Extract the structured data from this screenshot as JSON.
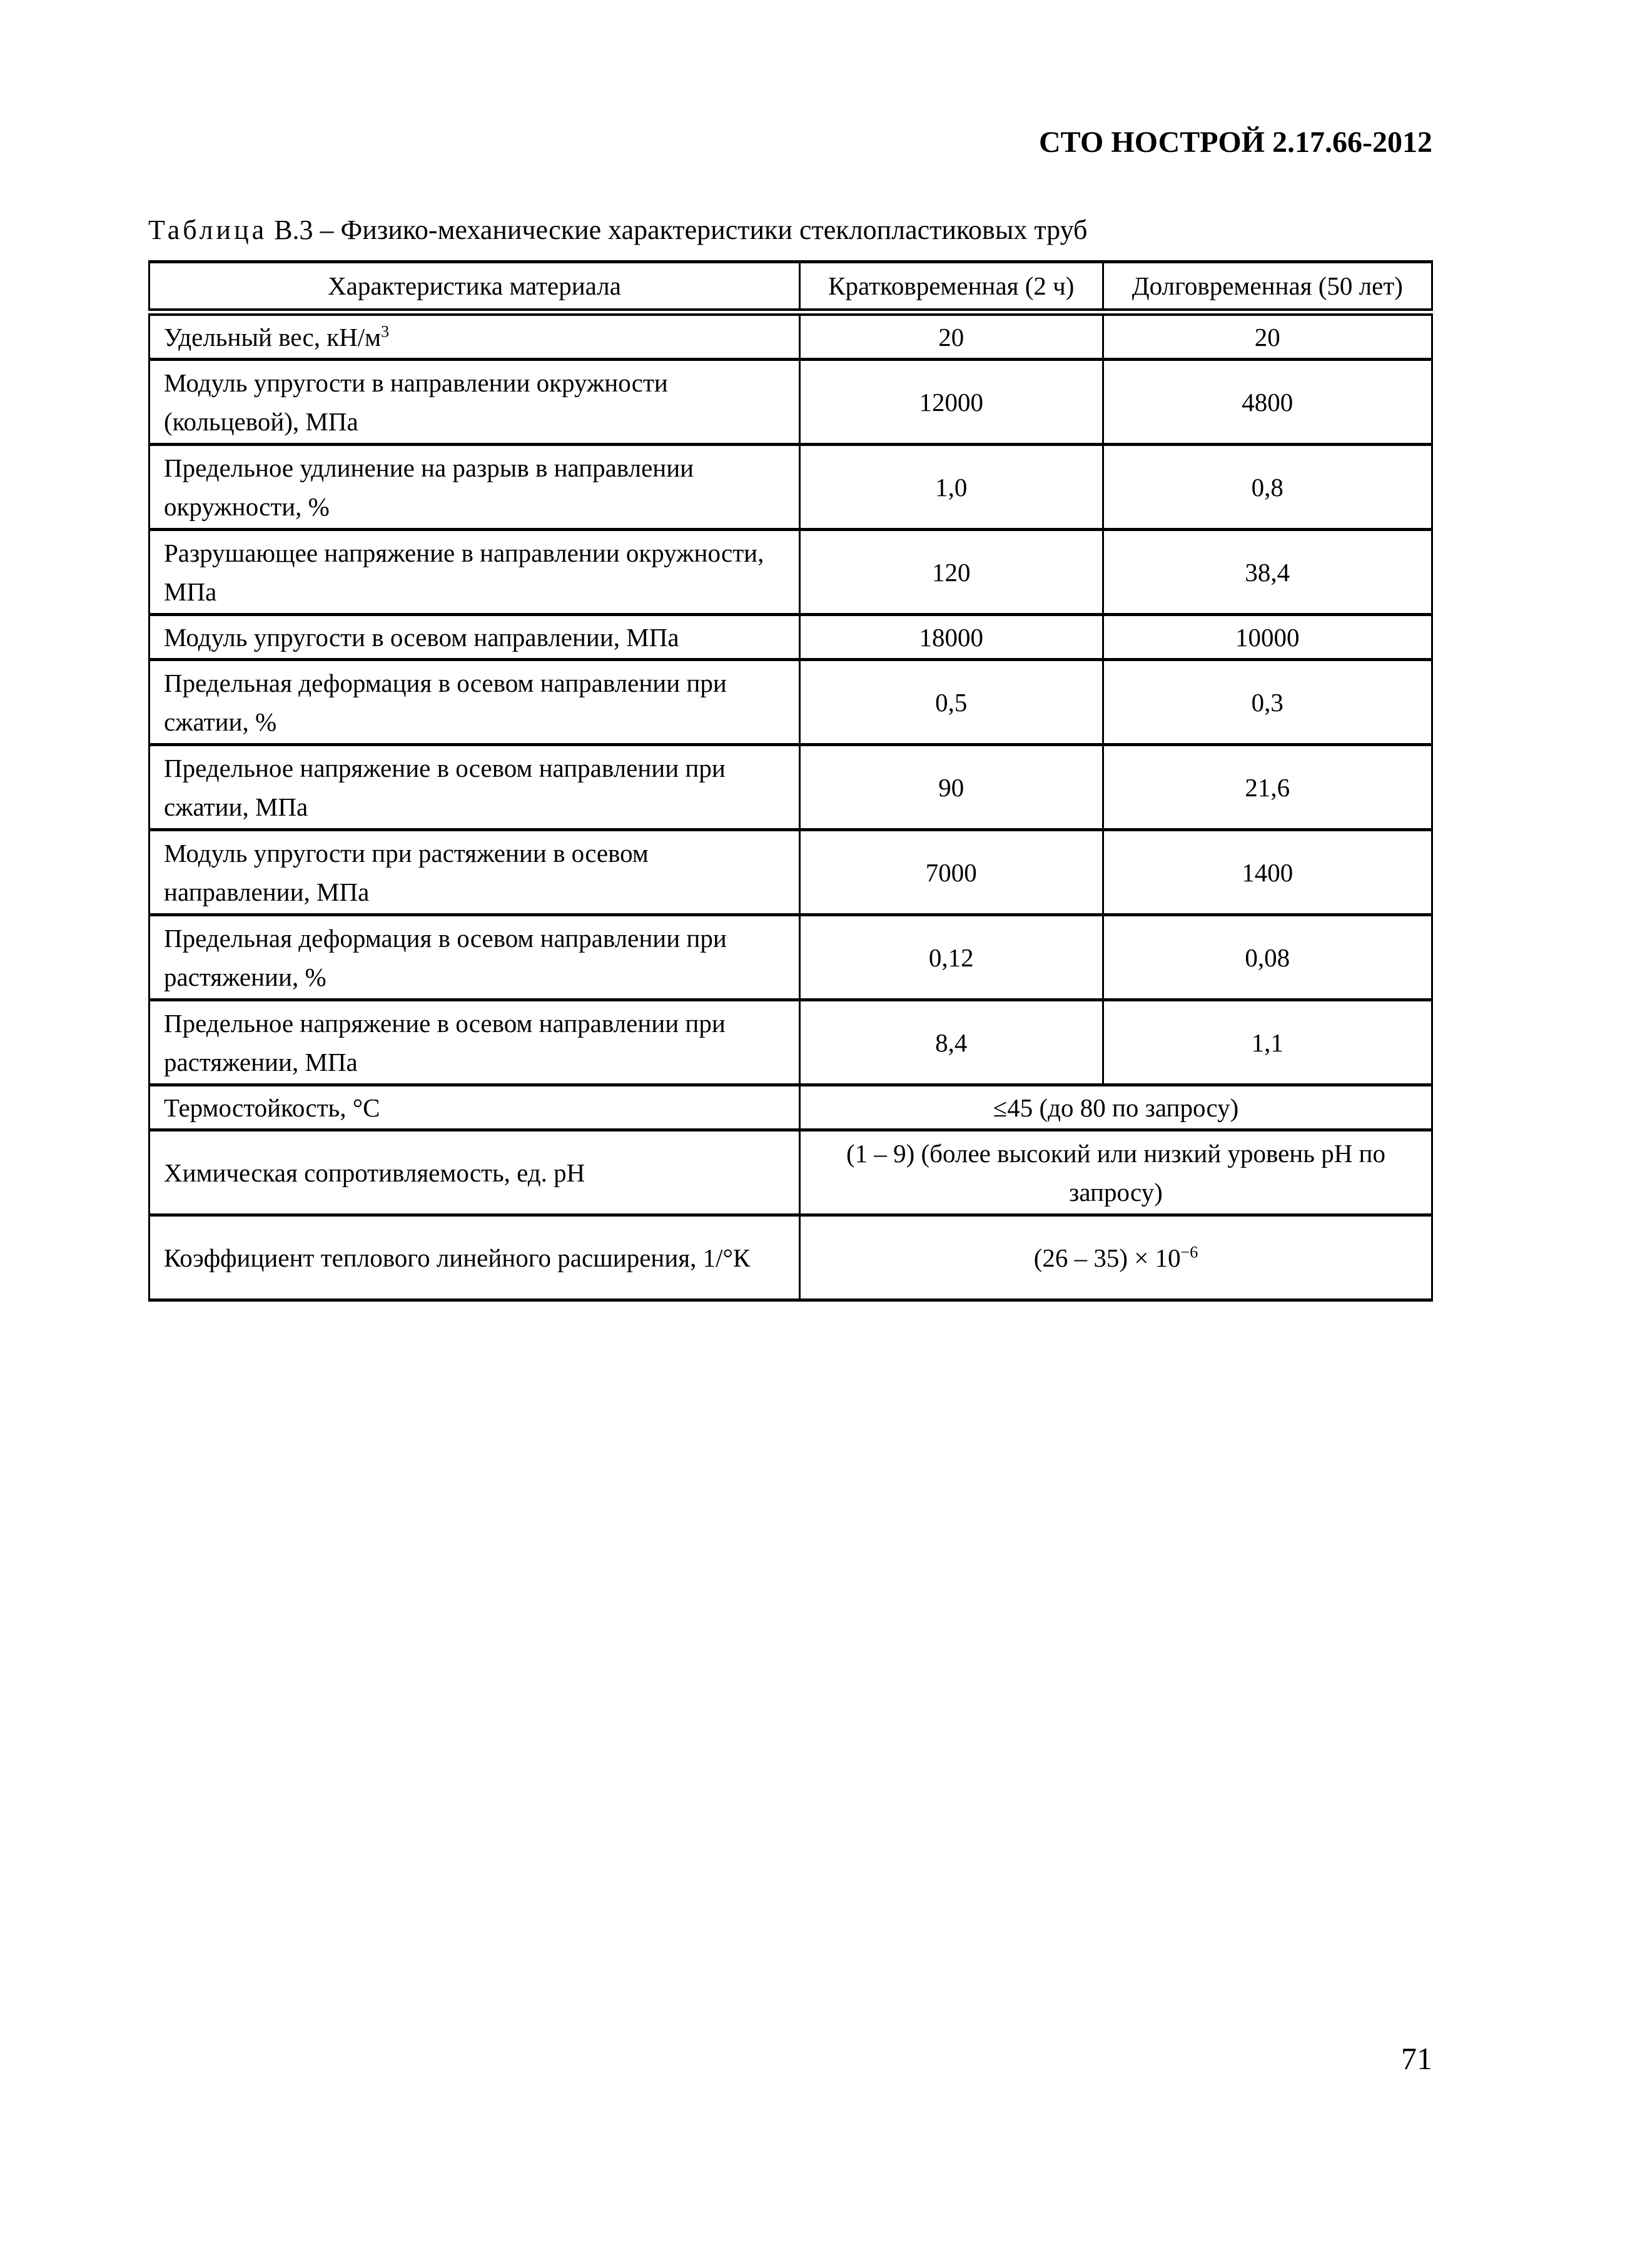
{
  "header": {
    "doc_code": "СТО НОСТРОЙ 2.17.66-2012"
  },
  "caption": {
    "label": "Таблица",
    "number": "В.3 –",
    "title": "Физико-механические характеристики стеклопластиковых труб"
  },
  "table": {
    "columns": [
      "Характеристика материала",
      "Кратковременная (2 ч)",
      "Долговременная (50 лет)"
    ],
    "rows": [
      {
        "name": "Удельный вес, кН/м",
        "name_sup": "3",
        "short": "20",
        "long": "20"
      },
      {
        "name": "Модуль упругости в направлении окружности (кольцевой), МПа",
        "short": "12000",
        "long": "4800"
      },
      {
        "name": "Предельное удлинение на разрыв в направлении окружности, %",
        "short": "1,0",
        "long": "0,8"
      },
      {
        "name": "Разрушающее напряжение в направлении окружности, МПа",
        "short": "120",
        "long": "38,4"
      },
      {
        "name": "Модуль упругости в осевом направлении, МПа",
        "short": "18000",
        "long": "10000"
      },
      {
        "name": "Предельная деформация в осевом направлении при сжатии, %",
        "short": "0,5",
        "long": "0,3"
      },
      {
        "name": "Предельное напряжение в осевом направлении при сжатии, МПа",
        "short": "90",
        "long": "21,6"
      },
      {
        "name": "Модуль упругости при растяжении в осевом направлении, МПа",
        "short": "7000",
        "long": "1400"
      },
      {
        "name": "Предельная деформация в осевом направлении при растяжении, %",
        "short": "0,12",
        "long": "0,08"
      },
      {
        "name": "Предельное напряжение в осевом направлении при растяжении, МПа",
        "short": "8,4",
        "long": "1,1"
      }
    ],
    "merged_rows": [
      {
        "name": "Термостойкость, °С",
        "value": "≤45 (до 80 по запросу)"
      },
      {
        "name": "Химическая сопротивляемость, ед. pH",
        "value": "(1 – 9) (более высокий или низкий уровень pH по запросу)"
      },
      {
        "name": "Коэффициент теплового линейного расширения, 1/°К",
        "value": "(26 – 35) × 10",
        "value_sup": "−6"
      }
    ]
  },
  "footer": {
    "page_number": "71"
  }
}
